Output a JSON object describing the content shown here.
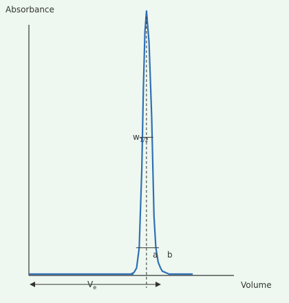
{
  "colors": {
    "background": "#eef8f0",
    "curve": "#2f6fb5",
    "axis": "#333333",
    "text": "#333333"
  },
  "labels": {
    "ylabel": "Absorbance",
    "xlabel": "Volume",
    "ve_main": "V",
    "ve_sub": "e",
    "w_main": "w",
    "w_sub": "1/2",
    "a": "a",
    "b": "b"
  },
  "chart_data": {
    "type": "line",
    "xlabel": "Volume",
    "ylabel": "Absorbance",
    "grid": false,
    "xlim": [
      0,
      100
    ],
    "ylim": [
      0,
      100
    ],
    "series": [
      {
        "x": [
          0,
          40,
          39.2,
          40.4,
          41.4,
          42.4,
          43.4,
          44.0,
          44.6,
          45.2,
          46.2,
          47.2,
          48.1,
          48.8,
          49.7,
          50.6,
          51.3,
          52.5,
          53.9,
          54.6,
          56.8,
          57.6,
          63
        ],
        "y": [
          0,
          0,
          0,
          0.6,
          2.3,
          10,
          40,
          70,
          92,
          100,
          88,
          60,
          22,
          10,
          4.5,
          2.3,
          1.1,
          0.6,
          0,
          0,
          0,
          0,
          0
        ]
      }
    ],
    "annotations": {
      "peak_x": 45.2,
      "half_height_y": 52,
      "half_width": [
        42.5,
        47.8
      ],
      "base_y": 10,
      "base_width": [
        41.2,
        50.0
      ],
      "ve_arrow": [
        0,
        45.2
      ]
    }
  }
}
